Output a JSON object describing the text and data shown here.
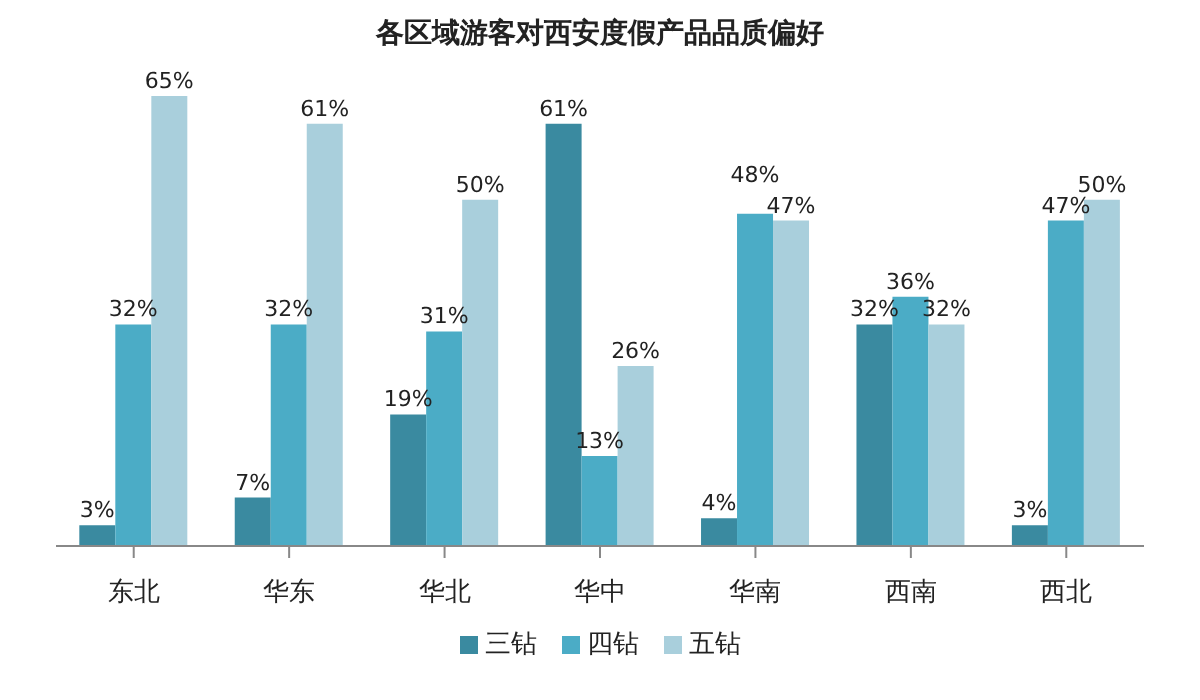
{
  "chart_data": {
    "type": "bar",
    "title": "各区域游客对西安度假产品品质偏好",
    "categories": [
      "东北",
      "华东",
      "华北",
      "华中",
      "华南",
      "西南",
      "西北"
    ],
    "series": [
      {
        "name": "三钻",
        "color": "#3a8aa0",
        "values": [
          3,
          7,
          19,
          61,
          4,
          32,
          3
        ],
        "value_labels": [
          "3%",
          "7%",
          "19%",
          "61%",
          "4%",
          "32%",
          "3%"
        ]
      },
      {
        "name": "四钻",
        "color": "#4bacc6",
        "values": [
          32,
          32,
          31,
          13,
          48,
          36,
          47
        ],
        "value_labels": [
          "32%",
          "32%",
          "31%",
          "13%",
          "48%",
          "36%",
          "47%"
        ]
      },
      {
        "name": "五钻",
        "color": "#a9cfdc",
        "values": [
          65,
          61,
          50,
          26,
          47,
          32,
          50
        ],
        "value_labels": [
          "65%",
          "61%",
          "50%",
          "26%",
          "47%",
          "32%",
          "50%"
        ]
      }
    ],
    "legend": "bottom",
    "grid": false
  }
}
